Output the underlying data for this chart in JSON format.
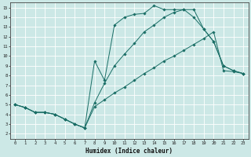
{
  "xlabel": "Humidex (Indice chaleur)",
  "background_color": "#cce8e6",
  "grid_color": "#b0d4d0",
  "line_color": "#1a6e66",
  "xlim": [
    -0.5,
    23.5
  ],
  "ylim": [
    1.5,
    15.5
  ],
  "xticks": [
    0,
    1,
    2,
    3,
    4,
    5,
    6,
    7,
    8,
    9,
    10,
    11,
    12,
    13,
    14,
    15,
    16,
    17,
    18,
    19,
    20,
    21,
    22,
    23
  ],
  "yticks": [
    2,
    3,
    4,
    5,
    6,
    7,
    8,
    9,
    10,
    11,
    12,
    13,
    14,
    15
  ],
  "line1_x": [
    0,
    1,
    2,
    3,
    4,
    5,
    6,
    7,
    8,
    9,
    10,
    11,
    12,
    13,
    14,
    15,
    16,
    17,
    18,
    19,
    20,
    21,
    22,
    23
  ],
  "line1_y": [
    5,
    4.7,
    4.2,
    4.2,
    4.0,
    3.5,
    3.0,
    2.6,
    4.8,
    5.5,
    6.2,
    6.8,
    7.5,
    8.2,
    8.8,
    9.5,
    10.0,
    10.6,
    11.2,
    11.8,
    12.5,
    8.5,
    8.4,
    8.2
  ],
  "line2_x": [
    0,
    1,
    2,
    3,
    4,
    5,
    6,
    7,
    8,
    9,
    10,
    11,
    12,
    13,
    14,
    15,
    16,
    17,
    18,
    19,
    20,
    21,
    22,
    23
  ],
  "line2_y": [
    5,
    4.7,
    4.2,
    4.2,
    4.0,
    3.5,
    3.0,
    2.6,
    9.5,
    7.5,
    13.2,
    14.0,
    14.3,
    14.4,
    15.2,
    14.8,
    14.8,
    14.8,
    14.0,
    12.8,
    11.5,
    9.0,
    8.5,
    8.2
  ],
  "line3_x": [
    0,
    1,
    2,
    3,
    4,
    5,
    6,
    7,
    8,
    9,
    10,
    11,
    12,
    13,
    14,
    15,
    16,
    17,
    18,
    19,
    20,
    21,
    22,
    23
  ],
  "line3_y": [
    5,
    4.7,
    4.2,
    4.2,
    4.0,
    3.5,
    3.0,
    2.6,
    5.2,
    7.2,
    9.0,
    10.2,
    11.3,
    12.5,
    13.2,
    14.0,
    14.5,
    14.8,
    14.8,
    12.8,
    11.5,
    9.0,
    8.5,
    8.2
  ]
}
